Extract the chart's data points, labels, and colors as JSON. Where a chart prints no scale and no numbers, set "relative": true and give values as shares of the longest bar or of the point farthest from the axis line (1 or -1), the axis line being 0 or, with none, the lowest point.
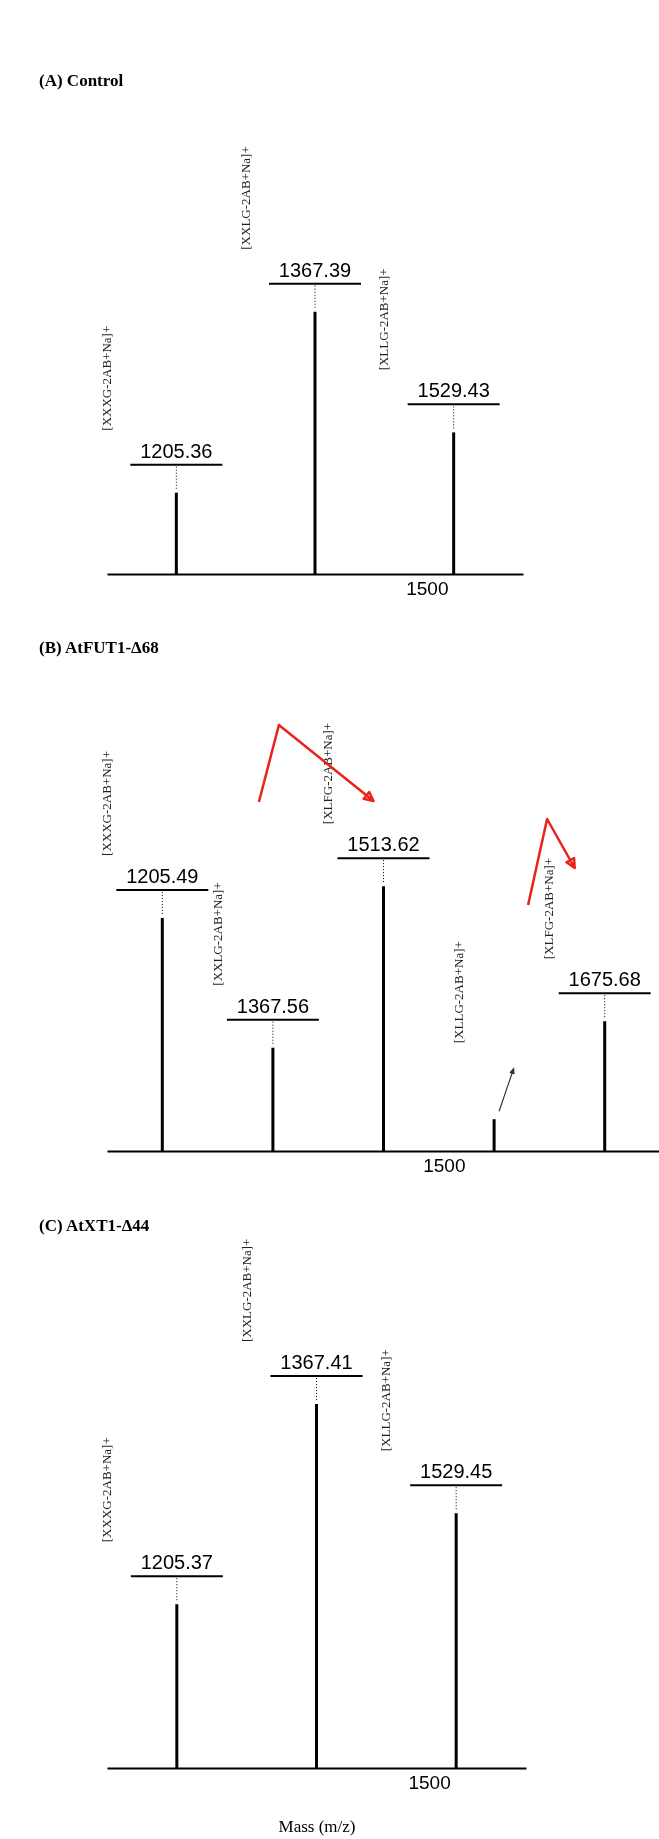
{
  "chart_data": [
    {
      "type": "bar",
      "title": "(A) Control",
      "relative": true,
      "categories": [
        null,
        null,
        null
      ],
      "values": [
        0.31,
        1,
        0.54
      ],
      "color": "#000000",
      "annotations": [
        {
          "text": "1205.36",
          "y": 0.31
        },
        {
          "text": "1367.39",
          "y": 1
        },
        {
          "text": "1529.43",
          "y": 0.54
        },
        "[XXXG-2AB+Na]+",
        "[XXLG-2AB+Na]+",
        "[XLLG-2AB+Na]+",
        "1500"
      ]
    },
    {
      "type": "bar",
      "title": "(B) AtFUT1-Δ68",
      "relative": true,
      "categories": [
        null,
        null,
        null,
        null,
        null
      ],
      "values": [
        0.88,
        0.39,
        1,
        0.12,
        0.49
      ],
      "color": "#000000",
      "annotations": [
        {
          "text": "1205.49",
          "y": 0.88
        },
        {
          "text": "1367.56",
          "y": 0.39
        },
        {
          "text": "1513.62",
          "y": 1
        },
        {
          "text": "1675.68",
          "y": 0.49
        },
        "[XXXG-2AB+Na]+",
        "[XXLG-2AB+Na]+",
        "[XLFG-2AB+Na]+",
        "[XLLG-2AB+Na]+",
        "[XLFG-2AB+Na]+",
        "1500"
      ]
    },
    {
      "type": "bar",
      "title": "(C) AtXT1-Δ44",
      "xlabel": "Mass (m/z)",
      "relative": true,
      "categories": [
        null,
        null,
        null
      ],
      "values": [
        0.45,
        1,
        0.7
      ],
      "color": "#000000",
      "annotations": [
        {
          "text": "1205.37",
          "y": 0.45
        },
        {
          "text": "1367.41",
          "y": 1
        },
        {
          "text": "1529.45",
          "y": 0.7
        },
        "[XXXG-2AB+Na]+",
        "[XXLG-2AB+Na]+",
        "[XLLG-2AB+Na]+",
        "1500"
      ]
    }
  ]
}
